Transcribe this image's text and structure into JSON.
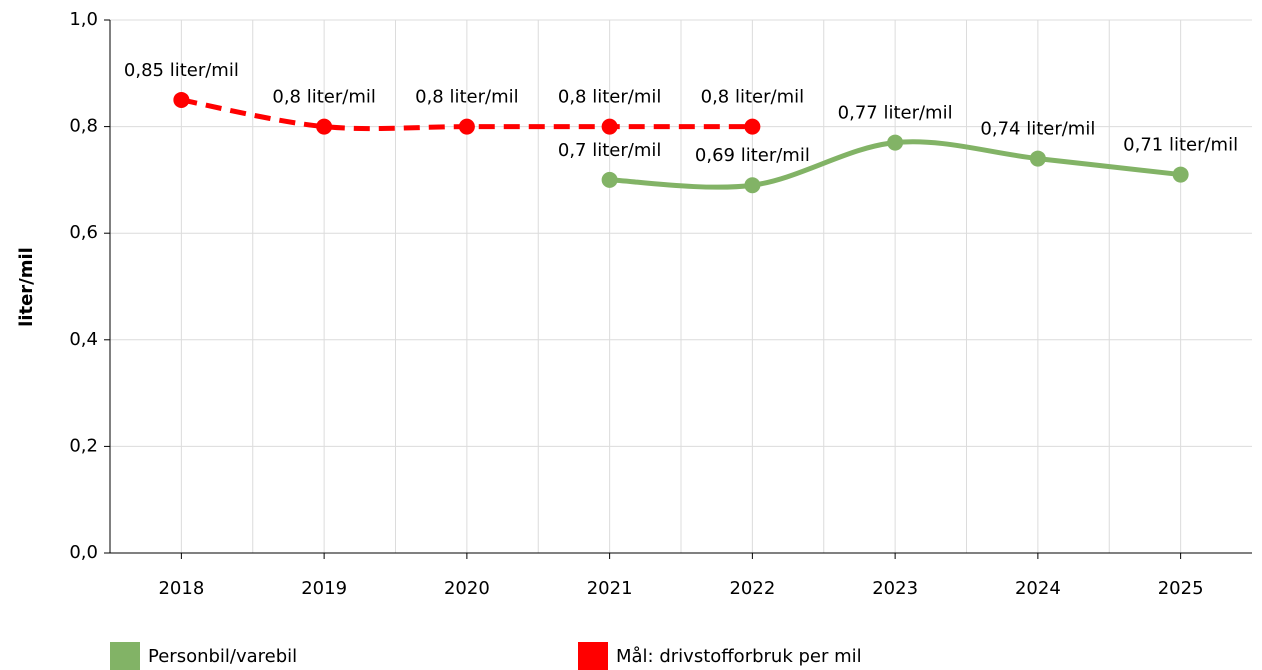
{
  "chart_data": {
    "type": "line",
    "categories": [
      "2018",
      "2019",
      "2020",
      "2021",
      "2022",
      "2023",
      "2024",
      "2025"
    ],
    "y_label": "liter/mil",
    "ylim": [
      0,
      1
    ],
    "yticks": [
      {
        "value": 0,
        "label": "0,0"
      },
      {
        "value": 0.2,
        "label": "0,2"
      },
      {
        "value": 0.4,
        "label": "0,4"
      },
      {
        "value": 0.6,
        "label": "0,6"
      },
      {
        "value": 0.8,
        "label": "0,8"
      },
      {
        "value": 1,
        "label": "1,0"
      }
    ],
    "grid": true,
    "smooth": true,
    "legend": "bottom",
    "series": [
      {
        "name": "Personbil/varebil",
        "color": "#82b366",
        "dashed": false,
        "values": [
          null,
          null,
          null,
          0.7,
          0.69,
          0.77,
          0.74,
          0.71
        ],
        "value_labels": [
          null,
          null,
          null,
          "0,7 liter/mil",
          "0,69 liter/mil",
          "0,77 liter/mil",
          "0,74 liter/mil",
          "0,71 liter/mil"
        ]
      },
      {
        "name": "Mål: drivstofforbruk per mil",
        "color": "#ff0000",
        "dashed": true,
        "values": [
          0.85,
          0.8,
          0.8,
          0.8,
          0.8,
          null,
          null,
          null
        ],
        "value_labels": [
          "0,85 liter/mil",
          "0,8 liter/mil",
          "0,8 liter/mil",
          "0,8 liter/mil",
          "0,8 liter/mil",
          null,
          null,
          null
        ]
      }
    ]
  }
}
